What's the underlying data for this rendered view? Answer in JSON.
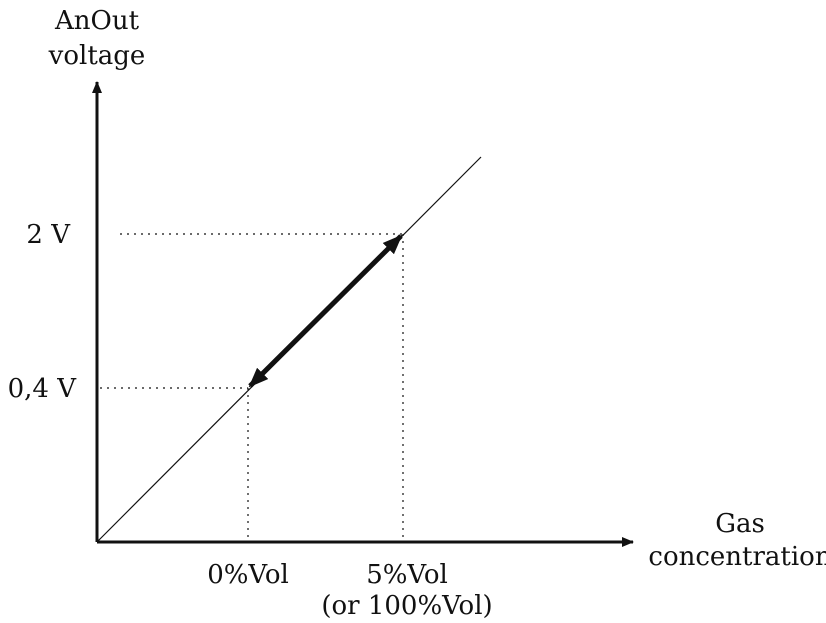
{
  "y_axis": {
    "label_line1": "AnOut",
    "label_line2": "voltage"
  },
  "x_axis": {
    "label_line1": "Gas",
    "label_line2": "concentration"
  },
  "y_ticks": {
    "high": "2 V",
    "low": "0,4 V"
  },
  "x_ticks": {
    "low": "0%Vol",
    "high_line1": "5%Vol",
    "high_line2": "(or 100%Vol)"
  },
  "colors": {
    "ink": "#111111"
  }
}
